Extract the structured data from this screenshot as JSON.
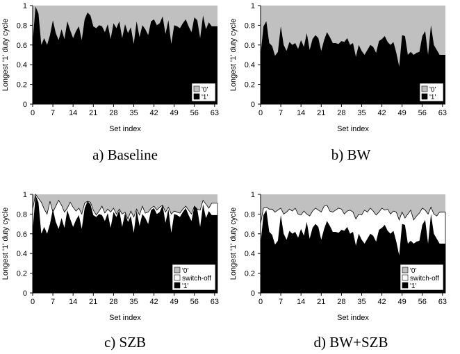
{
  "panels": [
    {
      "caption": "a)  Baseline",
      "ylabel": "Longest '1' duty cycle",
      "xlabel": "Set index",
      "legend": [
        "'0'",
        "'1'"
      ]
    },
    {
      "caption": "b)  BW",
      "ylabel": "Longest '1' duty cycle",
      "xlabel": "Set index",
      "legend": [
        "'0'",
        "'1'"
      ]
    },
    {
      "caption": "c)  SZB",
      "ylabel": "Longest '1' duty cycle",
      "xlabel": "Set index",
      "legend": [
        "'0'",
        "switch-off",
        "'1'"
      ]
    },
    {
      "caption": "d)  BW+SZB",
      "ylabel": "Longest '1' duty cycle",
      "xlabel": "Set index",
      "legend": [
        "'0'",
        "switch-off",
        "'1'"
      ]
    }
  ],
  "chart_data": [
    {
      "type": "area",
      "xlabel": "Set index",
      "ylabel": "Longest '1' duty cycle",
      "xlim": [
        0,
        64
      ],
      "ylim": [
        0,
        1
      ],
      "xticks": [
        0,
        7,
        14,
        21,
        28,
        35,
        42,
        49,
        56,
        63
      ],
      "yticks": [
        0,
        0.2,
        0.4,
        0.6,
        0.8,
        1
      ],
      "legend_position": "bottom-right",
      "x_start": 0,
      "colors": {
        "'0'": "#c0c0c0",
        "'1'": "#000000"
      },
      "series": [
        {
          "name": "'1'",
          "values": [
            0.63,
            0.99,
            0.92,
            0.6,
            0.67,
            0.6,
            0.7,
            0.85,
            0.72,
            0.65,
            0.76,
            0.66,
            0.84,
            0.75,
            0.67,
            0.74,
            0.79,
            0.65,
            0.86,
            0.93,
            0.9,
            0.79,
            0.77,
            0.8,
            0.79,
            0.73,
            0.81,
            0.66,
            0.82,
            0.77,
            0.84,
            0.67,
            0.81,
            0.72,
            0.78,
            0.61,
            0.84,
            0.68,
            0.8,
            0.76,
            0.7,
            0.84,
            0.86,
            0.8,
            0.82,
            0.89,
            0.71,
            0.85,
            0.61,
            0.8,
            0.79,
            0.77,
            0.82,
            0.86,
            0.79,
            0.73,
            0.88,
            0.85,
            0.67,
            0.9,
            0.76,
            0.83,
            0.79
          ]
        }
      ]
    },
    {
      "type": "area",
      "xlabel": "Set index",
      "ylabel": "Longest '1' duty cycle",
      "xlim": [
        0,
        64
      ],
      "ylim": [
        0,
        1
      ],
      "xticks": [
        0,
        7,
        14,
        21,
        28,
        35,
        42,
        49,
        56,
        63
      ],
      "yticks": [
        0,
        0.2,
        0.4,
        0.6,
        0.8,
        1
      ],
      "legend_position": "bottom-right",
      "x_start": 0,
      "colors": {
        "'0'": "#c0c0c0",
        "'1'": "#000000"
      },
      "series": [
        {
          "name": "'1'",
          "values": [
            0.5,
            0.79,
            0.84,
            0.62,
            0.59,
            0.49,
            0.53,
            0.79,
            0.6,
            0.54,
            0.63,
            0.6,
            0.62,
            0.56,
            0.65,
            0.58,
            0.72,
            0.55,
            0.66,
            0.7,
            0.67,
            0.54,
            0.65,
            0.73,
            0.68,
            0.62,
            0.62,
            0.61,
            0.64,
            0.63,
            0.67,
            0.6,
            0.62,
            0.48,
            0.6,
            0.54,
            0.5,
            0.55,
            0.6,
            0.58,
            0.52,
            0.64,
            0.66,
            0.69,
            0.63,
            0.6,
            0.63,
            0.52,
            0.38,
            0.7,
            0.69,
            0.5,
            0.53,
            0.5,
            0.52,
            0.53,
            0.69,
            0.74,
            0.5,
            0.8,
            0.6,
            0.55,
            0.5
          ]
        }
      ]
    },
    {
      "type": "area",
      "xlabel": "Set index",
      "ylabel": "Longest '1' duty cycle",
      "xlim": [
        0,
        64
      ],
      "ylim": [
        0,
        1
      ],
      "xticks": [
        0,
        7,
        14,
        21,
        28,
        35,
        42,
        49,
        56,
        63
      ],
      "yticks": [
        0,
        0.2,
        0.4,
        0.6,
        0.8,
        1
      ],
      "legend_position": "bottom-right",
      "x_start": 0,
      "colors": {
        "'0'": "#c0c0c0",
        "switch-off": "#ffffff",
        "'1'": "#000000"
      },
      "series": [
        {
          "name": "'1'",
          "values": [
            0.63,
            0.99,
            0.92,
            0.6,
            0.67,
            0.6,
            0.7,
            0.85,
            0.72,
            0.65,
            0.76,
            0.66,
            0.84,
            0.75,
            0.67,
            0.74,
            0.79,
            0.65,
            0.86,
            0.93,
            0.9,
            0.79,
            0.77,
            0.8,
            0.79,
            0.73,
            0.81,
            0.66,
            0.82,
            0.77,
            0.84,
            0.67,
            0.81,
            0.72,
            0.78,
            0.61,
            0.84,
            0.68,
            0.8,
            0.76,
            0.7,
            0.84,
            0.86,
            0.8,
            0.82,
            0.89,
            0.71,
            0.85,
            0.61,
            0.8,
            0.79,
            0.77,
            0.82,
            0.86,
            0.79,
            0.73,
            0.88,
            0.85,
            0.67,
            0.9,
            0.76,
            0.83,
            0.79
          ]
        },
        {
          "name": "switch-off",
          "values": [
            0.85,
            1.0,
            0.96,
            0.92,
            0.85,
            0.8,
            0.93,
            0.82,
            0.88,
            0.94,
            0.89,
            0.82,
            0.86,
            0.92,
            0.87,
            0.83,
            0.86,
            0.8,
            0.91,
            0.93,
            0.92,
            0.84,
            0.79,
            0.83,
            0.88,
            0.81,
            0.85,
            0.82,
            0.86,
            0.8,
            0.85,
            0.8,
            0.82,
            0.75,
            0.83,
            0.77,
            0.85,
            0.79,
            0.88,
            0.81,
            0.82,
            0.86,
            0.88,
            0.84,
            0.87,
            0.89,
            0.82,
            0.87,
            0.8,
            0.83,
            0.82,
            0.81,
            0.85,
            0.88,
            0.84,
            0.8,
            0.88,
            0.85,
            0.84,
            0.94,
            0.9,
            0.86,
            0.91
          ]
        }
      ]
    },
    {
      "type": "area",
      "xlabel": "Set index",
      "ylabel": "Longest '1' duty cycle",
      "xlim": [
        0,
        64
      ],
      "ylim": [
        0,
        1
      ],
      "xticks": [
        0,
        7,
        14,
        21,
        28,
        35,
        42,
        49,
        56,
        63
      ],
      "yticks": [
        0,
        0.2,
        0.4,
        0.6,
        0.8,
        1
      ],
      "legend_position": "bottom-right",
      "x_start": 0,
      "colors": {
        "'0'": "#c0c0c0",
        "switch-off": "#ffffff",
        "'1'": "#000000"
      },
      "series": [
        {
          "name": "'1'",
          "values": [
            0.5,
            0.79,
            0.84,
            0.62,
            0.59,
            0.49,
            0.53,
            0.79,
            0.6,
            0.54,
            0.63,
            0.6,
            0.62,
            0.56,
            0.65,
            0.58,
            0.72,
            0.55,
            0.66,
            0.7,
            0.67,
            0.54,
            0.65,
            0.73,
            0.68,
            0.62,
            0.62,
            0.61,
            0.64,
            0.63,
            0.67,
            0.6,
            0.62,
            0.48,
            0.6,
            0.54,
            0.5,
            0.55,
            0.6,
            0.58,
            0.52,
            0.64,
            0.66,
            0.69,
            0.63,
            0.6,
            0.63,
            0.52,
            0.38,
            0.7,
            0.69,
            0.5,
            0.53,
            0.5,
            0.52,
            0.53,
            0.69,
            0.74,
            0.5,
            0.8,
            0.6,
            0.55,
            0.5
          ]
        },
        {
          "name": "switch-off",
          "values": [
            0.7,
            0.86,
            0.87,
            0.85,
            0.85,
            0.82,
            0.84,
            0.86,
            0.8,
            0.82,
            0.85,
            0.83,
            0.86,
            0.8,
            0.79,
            0.83,
            0.8,
            0.78,
            0.83,
            0.86,
            0.84,
            0.82,
            0.88,
            0.89,
            0.83,
            0.82,
            0.84,
            0.86,
            0.85,
            0.8,
            0.83,
            0.84,
            0.82,
            0.75,
            0.8,
            0.79,
            0.84,
            0.82,
            0.86,
            0.83,
            0.79,
            0.82,
            0.86,
            0.84,
            0.85,
            0.8,
            0.83,
            0.82,
            0.74,
            0.82,
            0.76,
            0.8,
            0.84,
            0.74,
            0.78,
            0.81,
            0.86,
            0.84,
            0.8,
            0.87,
            0.8,
            0.78,
            0.82
          ]
        }
      ]
    }
  ]
}
